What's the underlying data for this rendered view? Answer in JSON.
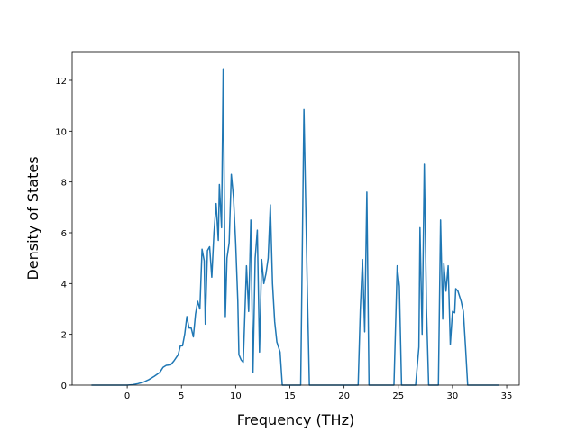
{
  "chart_data": {
    "type": "line",
    "x_label": "Frequency (THz)",
    "y_label": "Density of States",
    "x": [
      -3.3,
      0,
      0.5,
      1,
      1.5,
      2,
      2.5,
      3,
      3.3,
      3.6,
      4,
      4.3,
      4.7,
      4.9,
      5.1,
      5.3,
      5.5,
      5.7,
      5.9,
      6.1,
      6.3,
      6.5,
      6.7,
      6.9,
      7.1,
      7.2,
      7.4,
      7.6,
      7.8,
      8.0,
      8.2,
      8.4,
      8.5,
      8.7,
      8.85,
      9.05,
      9.2,
      9.4,
      9.6,
      9.8,
      10.0,
      10.2,
      10.3,
      10.5,
      10.7,
      11.0,
      11.2,
      11.4,
      11.6,
      11.8,
      12.0,
      12.2,
      12.4,
      12.6,
      12.8,
      13.0,
      13.2,
      13.4,
      13.6,
      13.8,
      14.1,
      14.3,
      16.0,
      16.3,
      16.6,
      16.8,
      21.3,
      21.5,
      21.7,
      21.9,
      22.1,
      22.3,
      24.6,
      24.9,
      25.1,
      25.3,
      26.6,
      26.9,
      27.0,
      27.2,
      27.4,
      27.6,
      27.8,
      28.7,
      28.9,
      29.1,
      29.2,
      29.4,
      29.6,
      29.8,
      30.0,
      30.2,
      30.3,
      30.5,
      30.8,
      31.0,
      31.2,
      31.4,
      34.3
    ],
    "series": [
      {
        "color": "#1f77b4",
        "values": [
          0,
          0,
          0.02,
          0.06,
          0.12,
          0.22,
          0.35,
          0.5,
          0.7,
          0.78,
          0.8,
          0.95,
          1.2,
          1.55,
          1.55,
          2.0,
          2.7,
          2.25,
          2.25,
          1.9,
          2.8,
          3.3,
          3.0,
          5.35,
          4.9,
          2.4,
          5.3,
          5.45,
          4.25,
          6.0,
          7.15,
          5.7,
          7.9,
          6.2,
          12.45,
          2.7,
          5.0,
          5.6,
          8.3,
          7.4,
          5.6,
          3.3,
          1.2,
          1.0,
          0.9,
          4.7,
          2.9,
          6.5,
          0.5,
          5.0,
          6.1,
          1.3,
          4.95,
          4.0,
          4.4,
          5.0,
          7.1,
          4.0,
          2.5,
          1.7,
          1.3,
          0,
          0,
          10.85,
          4.0,
          0,
          0,
          3.0,
          4.95,
          2.1,
          7.6,
          0,
          0,
          4.7,
          3.9,
          0,
          0,
          1.5,
          6.2,
          2.0,
          8.7,
          3.0,
          0,
          0,
          6.5,
          2.6,
          4.8,
          3.7,
          4.7,
          1.6,
          2.9,
          2.85,
          3.8,
          3.7,
          3.3,
          2.9,
          1.5,
          0,
          0
        ]
      }
    ],
    "xlim": [
      -5.08,
      36.16
    ],
    "ylim": [
      0,
      13.1
    ],
    "xticks": [
      0,
      5,
      10,
      15,
      20,
      25,
      30,
      35
    ],
    "yticks": [
      0,
      2,
      4,
      6,
      8,
      10,
      12
    ]
  }
}
